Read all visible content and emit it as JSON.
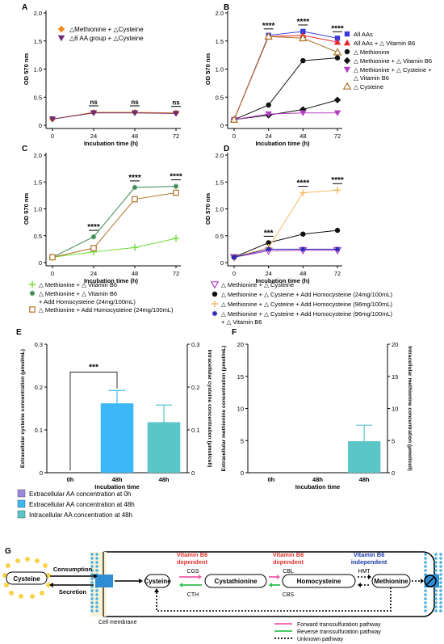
{
  "panel_labels": {
    "A": "A",
    "B": "B",
    "C": "C",
    "D": "D",
    "E": "E",
    "F": "F",
    "G": "G"
  },
  "common": {
    "ylabel": "OD 570 nm",
    "xlabel": "Incubation time (h)",
    "xticks": [
      "0",
      "24",
      "48",
      "72"
    ],
    "yticks": [
      "0",
      "0.5",
      "1.0",
      "1.5",
      "2.0"
    ]
  },
  "chart_data": [
    {
      "panel": "A",
      "type": "line",
      "x": [
        0,
        24,
        48,
        72
      ],
      "ylim": [
        0,
        2.0
      ],
      "xlabel": "Incubation time (h)",
      "ylabel": "OD 570 nm",
      "legend_position": "top-center",
      "series": [
        {
          "name": "△Methionine + △Cysteine",
          "color": "#f08a1c",
          "marker": "diamond",
          "values": [
            0.11,
            0.23,
            0.23,
            0.22
          ]
        },
        {
          "name": "△6 AA group + △Cysteine",
          "color": "#6b2a73",
          "marker": "triangle-down",
          "values": [
            0.11,
            0.22,
            0.22,
            0.21
          ]
        }
      ],
      "annotations": [
        {
          "x": 24,
          "text": "ns"
        },
        {
          "x": 48,
          "text": "ns"
        },
        {
          "x": 72,
          "text": "ns"
        }
      ]
    },
    {
      "panel": "B",
      "type": "line",
      "x": [
        0,
        24,
        48,
        72
      ],
      "ylim": [
        0,
        2.0
      ],
      "xlabel": "Incubation time (h)",
      "ylabel": "OD 570 nm",
      "legend_position": "right",
      "series": [
        {
          "name": "All AAs",
          "color": "#3a3adf",
          "marker": "square",
          "values": [
            0.1,
            1.6,
            1.67,
            1.55
          ]
        },
        {
          "name": "All AAs + △ Vitamin B6",
          "color": "#e8262a",
          "marker": "triangle-up",
          "values": [
            0.1,
            1.58,
            1.6,
            1.48
          ]
        },
        {
          "name": "△ Methionine",
          "color": "#111111",
          "marker": "circle",
          "values": [
            0.1,
            0.36,
            1.15,
            1.2
          ]
        },
        {
          "name": "△ Methionine + △ Vitamin B6",
          "color": "#111111",
          "marker": "diamond",
          "values": [
            0.1,
            0.18,
            0.28,
            0.45
          ]
        },
        {
          "name": "△ Methionine + △ Cysteine + △ Vitamin B6",
          "color": "#b040c0",
          "marker": "triangle-down",
          "values": [
            0.1,
            0.2,
            0.22,
            0.22
          ]
        },
        {
          "name": "△ Cysteine",
          "color": "#b0722a",
          "marker": "triangle-up-open",
          "values": [
            0.1,
            1.58,
            1.55,
            1.3
          ]
        }
      ],
      "annotations": [
        {
          "x": 24,
          "text": "****"
        },
        {
          "x": 48,
          "text": "****"
        },
        {
          "x": 72,
          "text": "****"
        }
      ]
    },
    {
      "panel": "C",
      "type": "line",
      "x": [
        0,
        24,
        48,
        72
      ],
      "ylim": [
        0,
        2.0
      ],
      "xlabel": "Incubation time (h)",
      "ylabel": "OD 570 nm",
      "legend_position": "bottom",
      "series": [
        {
          "name": "△ Methionine + △ Vitamin B6",
          "color": "#6fdc3a",
          "marker": "plus",
          "values": [
            0.1,
            0.2,
            0.28,
            0.45
          ]
        },
        {
          "name": "△ Methionine + △ Vitamin B6 + Add Homocysteine (24mg/100mL)",
          "color": "#3a8a52",
          "marker": "star",
          "values": [
            0.1,
            0.48,
            1.4,
            1.42
          ]
        },
        {
          "name": "△ Methionine + Add Homocysteine (24mg/100mL)",
          "color": "#b0722a",
          "marker": "square-open",
          "values": [
            0.1,
            0.27,
            1.18,
            1.3
          ]
        }
      ],
      "annotations": [
        {
          "x": 24,
          "text": "****"
        },
        {
          "x": 48,
          "text": "****"
        },
        {
          "x": 72,
          "text": "****"
        }
      ]
    },
    {
      "panel": "D",
      "type": "line",
      "x": [
        0,
        24,
        48,
        72
      ],
      "ylim": [
        0,
        2.0
      ],
      "xlabel": "Incubation time (h)",
      "ylabel": "OD 570 nm",
      "legend_position": "bottom",
      "series": [
        {
          "name": "△ Methionine + △ Cysteine",
          "color": "#b040c0",
          "marker": "triangle-down-open",
          "values": [
            0.1,
            0.22,
            0.23,
            0.23
          ]
        },
        {
          "name": "△ Methionine + △ Cysteine + Add Homocysteine (24mg/100mL)",
          "color": "#111111",
          "marker": "circle",
          "values": [
            0.1,
            0.37,
            0.53,
            0.6
          ]
        },
        {
          "name": "△ Methionine + △ Cysteine + Add Homocysteine (96mg/100mL)",
          "color": "#f5b860",
          "marker": "plus",
          "values": [
            0.1,
            0.28,
            1.3,
            1.35
          ]
        },
        {
          "name": "△ Methionine + △ Cysteine + Add Homocysteine (96mg/100mL) + △ Vitamin B6",
          "color": "#2a2ab8",
          "marker": "star",
          "values": [
            0.1,
            0.25,
            0.25,
            0.25
          ]
        }
      ],
      "annotations": [
        {
          "x": 24,
          "text": "***"
        },
        {
          "x": 48,
          "text": "****"
        },
        {
          "x": 72,
          "text": "****"
        }
      ]
    },
    {
      "panel": "E",
      "type": "bar",
      "categories": [
        "0h",
        "48h",
        "48h"
      ],
      "values": [
        0,
        0.162,
        0.118
      ],
      "errors": [
        0,
        0.03,
        0.04
      ],
      "colors": [
        "#9b86e0",
        "#3bb8f5",
        "#5ac6c8"
      ],
      "ylim": [
        0,
        0.3
      ],
      "ylim_right": [
        0,
        0.3
      ],
      "yticks": [
        "0",
        "0.1",
        "0.2",
        "0.3"
      ],
      "xlabel": "Incubation time",
      "ylabel": "Extracellular cysteine concentration (μmol/mL)",
      "ylabel_right": "Intracellular cysteine concentration (μmol/cell)",
      "annotation": "***",
      "legend": [
        "Extracellular AA concentration at 0h",
        "Extracellular AA concentration at 48h",
        "Intracellular AA concentration at 48h"
      ]
    },
    {
      "panel": "F",
      "type": "bar",
      "categories": [
        "0h",
        "48h",
        "48h"
      ],
      "values": [
        0,
        0,
        4.9
      ],
      "errors": [
        0,
        0,
        2.5
      ],
      "colors": [
        "#9b86e0",
        "#3bb8f5",
        "#5ac6c8"
      ],
      "ylim": [
        0,
        20
      ],
      "ylim_right": [
        0,
        20
      ],
      "yticks": [
        "0",
        "5",
        "10",
        "15",
        "20"
      ],
      "xlabel": "Incubation time",
      "ylabel": "Extracellular methionine concentration (μmol/mL)",
      "ylabel_right": "Intracellular methionine concentration (μmol/cell)"
    }
  ],
  "diagram": {
    "cysteine_outside": "Cysteine",
    "consumption": "Consumption",
    "secretion": "Secretion",
    "cell_membrane": "Cell membrane",
    "nodes": [
      "Cysteine",
      "Cystathionine",
      "Homocysteine",
      "Methionine"
    ],
    "b6_dep_1": [
      "Vitamin B6",
      "dependent"
    ],
    "b6_dep_2": [
      "Vitamin B6",
      "dependent"
    ],
    "b6_indep": [
      "Vitamin B6",
      "independent"
    ],
    "enz": {
      "cgs": "CGS",
      "cth": "CTH",
      "cbl": "CBL",
      "cbs": "CBS",
      "hmt": "HMT"
    },
    "legend": [
      "Forward transsulfuration pathway",
      "Reverse transsulfuration pathway",
      "Unknown pathway"
    ],
    "colors": {
      "forward": "#f05aa5",
      "reverse": "#2fbf4f",
      "dependent": "#e23030",
      "independent": "#1c3aa8",
      "membrane": "#4ab0e0",
      "cysteine_dots": "#f7d44a"
    }
  }
}
